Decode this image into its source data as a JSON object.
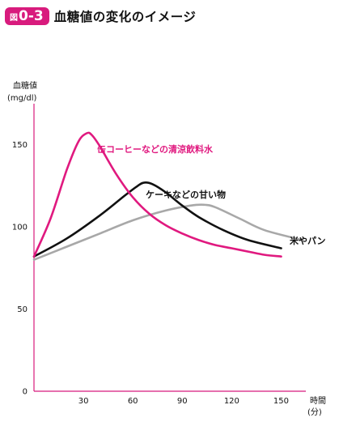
{
  "figure": {
    "label_prefix": "図",
    "number": "0-3",
    "title": "血糖値の変化のイメージ"
  },
  "colors": {
    "badge": "#d81b7d",
    "axis": "#d81b7d",
    "canned_coffee": "#e0197f",
    "cake": "#111111",
    "rice_bread": "#a8a8a8"
  },
  "chart_data": {
    "type": "line",
    "ylabel": "血糖値",
    "yunit": "(mg/dl)",
    "xlabel": "時間",
    "xunit": "(分)",
    "xlim": [
      0,
      165
    ],
    "ylim": [
      0,
      175
    ],
    "x_ticks": [
      30,
      60,
      90,
      120,
      150
    ],
    "y_ticks": [
      0,
      50,
      100,
      150
    ],
    "grid": false,
    "series": [
      {
        "name": "缶コーヒーなどの清涼飲料水",
        "color_key": "canned_coffee",
        "x": [
          0,
          10,
          20,
          27,
          32,
          35,
          40,
          50,
          60,
          70,
          80,
          90,
          100,
          110,
          120,
          130,
          140,
          150
        ],
        "y": [
          82,
          105,
          135,
          152,
          157,
          156,
          149,
          132,
          118,
          108,
          101,
          96,
          92,
          89,
          87,
          85,
          83,
          82
        ]
      },
      {
        "name": "ケーキなどの甘い物",
        "color_key": "cake",
        "x": [
          0,
          20,
          40,
          55,
          63,
          67,
          72,
          80,
          90,
          100,
          115,
          130,
          150
        ],
        "y": [
          82,
          93,
          107,
          119,
          125,
          127,
          126,
          121,
          113,
          106,
          98,
          92,
          87
        ]
      },
      {
        "name": "米やパン",
        "color_key": "rice_bread",
        "x": [
          0,
          20,
          40,
          60,
          80,
          95,
          103,
          110,
          125,
          140,
          163
        ],
        "y": [
          80,
          88,
          96,
          104,
          110,
          113,
          113.5,
          112,
          105,
          98,
          92
        ]
      }
    ]
  }
}
